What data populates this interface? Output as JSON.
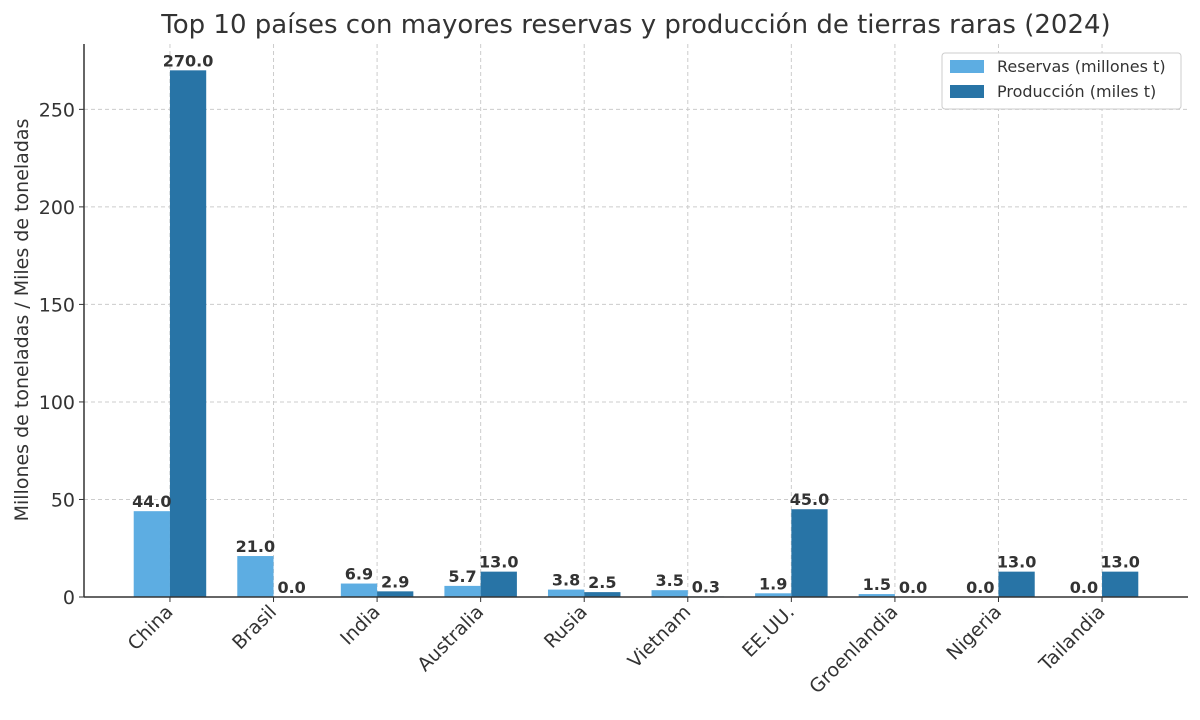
{
  "chart_data": {
    "type": "bar",
    "title": "Top 10 países con mayores reservas y producción de tierras raras (2024)",
    "xlabel": "",
    "ylabel": "Millones de toneladas / Miles de toneladas",
    "categories": [
      "China",
      "Brasil",
      "India",
      "Australia",
      "Rusia",
      "Vietnam",
      "EE.UU.",
      "Groenlandia",
      "Nigeria",
      "Tailandia"
    ],
    "series": [
      {
        "name": "Reservas (millones t)",
        "color": "#5dade2",
        "values": [
          44.0,
          21.0,
          6.9,
          5.7,
          3.8,
          3.5,
          1.9,
          1.5,
          0.0,
          0.0
        ]
      },
      {
        "name": "Producción (miles t)",
        "color": "#2874a6",
        "values": [
          270.0,
          0.0,
          2.9,
          13.0,
          2.5,
          0.3,
          45.0,
          0.0,
          13.0,
          13.0
        ]
      }
    ],
    "ylim": [
      0,
      283.5
    ],
    "yticks": [
      0,
      50,
      100,
      150,
      200,
      250
    ],
    "grid": true,
    "legend_position": "top-right",
    "data_labels": true
  }
}
